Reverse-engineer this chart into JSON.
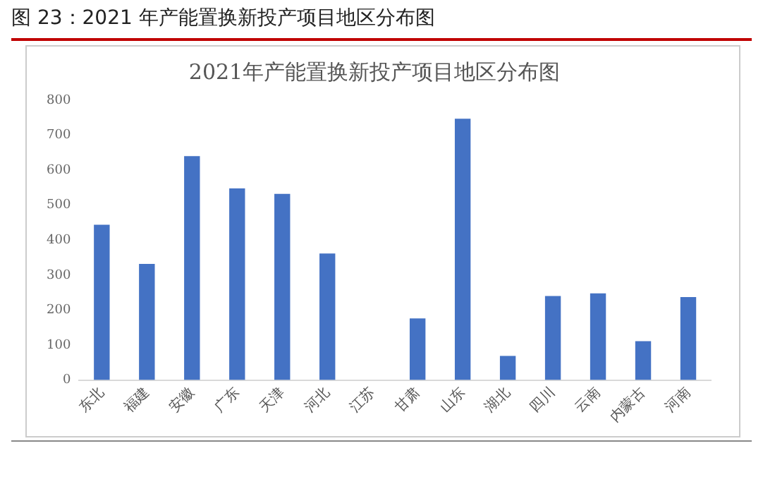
{
  "chart_data": {
    "type": "bar",
    "title": "图 23：2021 年产能置换新投产项目地区分布图",
    "subtitle": "2021年产能置换新投产项目地区分布图",
    "categories": [
      "东北",
      "福建",
      "安徽",
      "广东",
      "天津",
      "河北",
      "江苏",
      "甘肃",
      "山东",
      "湖北",
      "四川",
      "云南",
      "内蒙古",
      "河南"
    ],
    "values": [
      444,
      332,
      640,
      548,
      532,
      362,
      null,
      176,
      747,
      69,
      240,
      248,
      111,
      237
    ],
    "color": "#4472c4",
    "ylim": [
      0,
      800
    ],
    "yticks": [
      0,
      100,
      200,
      300,
      400,
      500,
      600,
      700,
      800
    ],
    "grid": false,
    "legend": false
  }
}
